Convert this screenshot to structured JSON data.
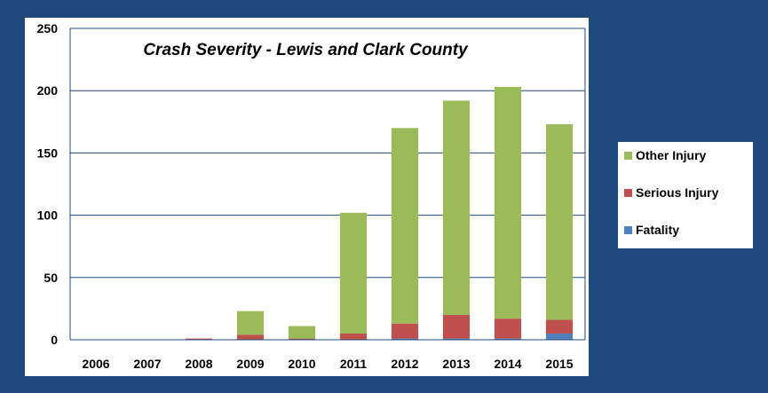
{
  "chart_data": {
    "type": "bar",
    "stacked": true,
    "title": "Crash Severity - Lewis and Clark County",
    "categories": [
      "2006",
      "2007",
      "2008",
      "2009",
      "2010",
      "2011",
      "2012",
      "2013",
      "2014",
      "2015"
    ],
    "series": [
      {
        "name": "Fatality",
        "color": "#4f81bd",
        "values": [
          0,
          0,
          0,
          0,
          0,
          0,
          1,
          1,
          1,
          5
        ]
      },
      {
        "name": "Serious Injury",
        "color": "#c0504d",
        "values": [
          0,
          0,
          1,
          4,
          1,
          5,
          12,
          19,
          16,
          11
        ]
      },
      {
        "name": "Other Injury",
        "color": "#9bbb59",
        "values": [
          0,
          0,
          0,
          19,
          10,
          97,
          157,
          172,
          186,
          157
        ]
      }
    ],
    "legend_order": [
      "Other Injury",
      "Serious Injury",
      "Fatality"
    ],
    "yticks": [
      "0",
      "50",
      "100",
      "150",
      "200",
      "250"
    ],
    "ylim": [
      0,
      250
    ],
    "grid": true,
    "legend_position": "right",
    "colors": {
      "background": "#1f497d",
      "plot_background": "#ffffff",
      "gridline": "#1f497d",
      "text": "#000000"
    }
  }
}
